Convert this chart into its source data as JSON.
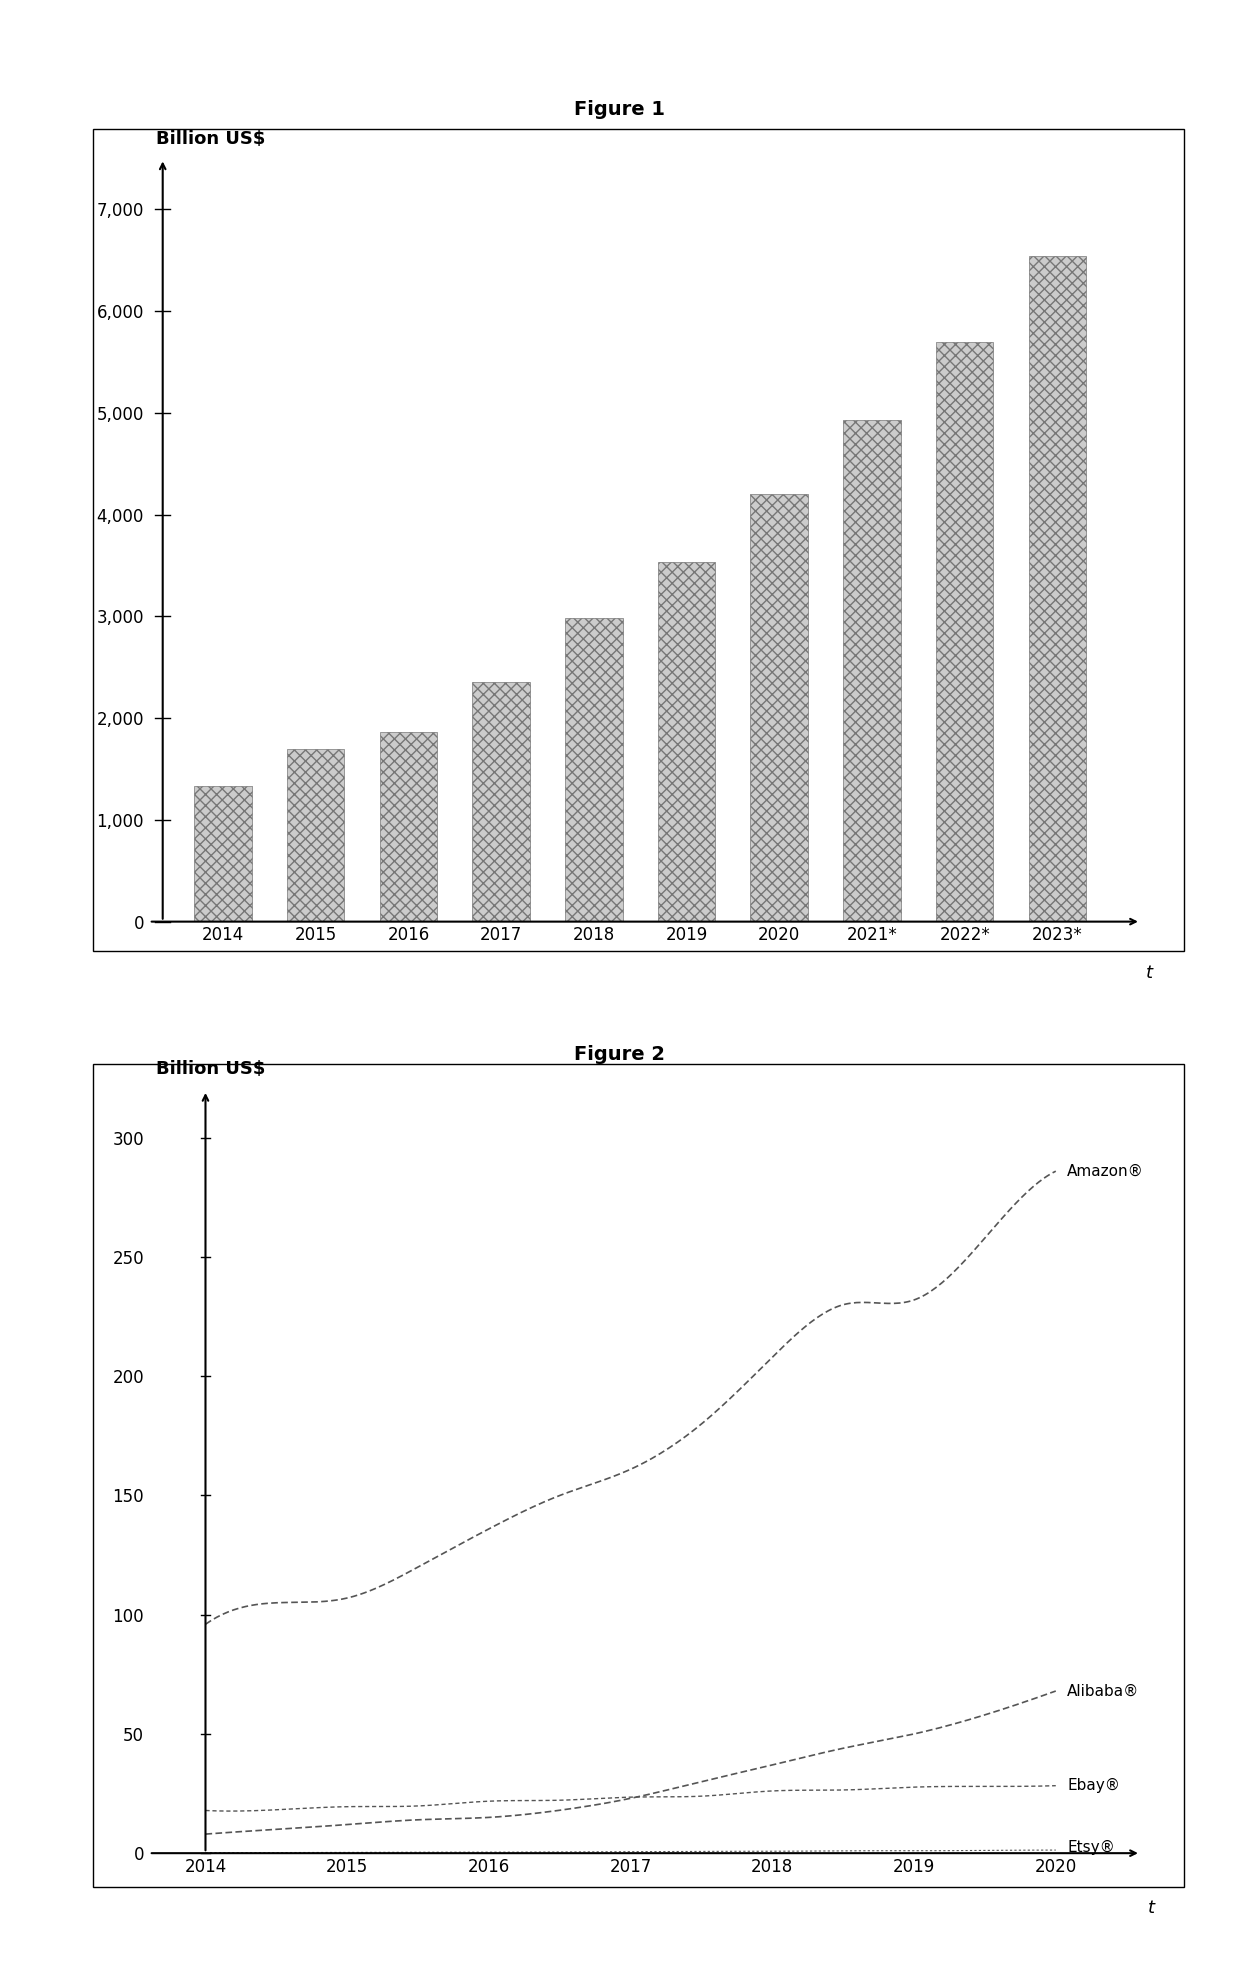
{
  "fig1_title": "Figure 1",
  "fig2_title": "Figure 2",
  "fig1_ylabel": "Billion US$",
  "fig2_ylabel": "Billion US$",
  "fig1_xlabel": "t",
  "fig2_xlabel": "t",
  "fig1_categories": [
    "2014",
    "2015",
    "2016",
    "2017",
    "2018",
    "2019",
    "2020",
    "2021*",
    "2022*",
    "2023*"
  ],
  "fig1_values": [
    1336,
    1700,
    1860,
    2357,
    2982,
    3535,
    4206,
    4927,
    5695,
    6542
  ],
  "fig1_ylim": [
    0,
    7500
  ],
  "fig1_yticks": [
    0,
    1000,
    2000,
    3000,
    4000,
    5000,
    6000,
    7000
  ],
  "amazon_years": [
    2014,
    2014.5,
    2015,
    2015.5,
    2016,
    2016.5,
    2017,
    2017.5,
    2018,
    2018.5,
    2019,
    2019.5,
    2020
  ],
  "amazon_values": [
    96,
    105,
    107,
    120,
    136,
    150,
    161,
    180,
    208,
    230,
    232,
    258,
    286
  ],
  "alibaba_years": [
    2014,
    2014.5,
    2015,
    2015.5,
    2016,
    2016.5,
    2017,
    2017.5,
    2018,
    2018.5,
    2019,
    2019.5,
    2020
  ],
  "alibaba_values": [
    8,
    10,
    12,
    14,
    15,
    18,
    23,
    30,
    37,
    44,
    50,
    58,
    68
  ],
  "ebay_years": [
    2014,
    2014.5,
    2015,
    2015.5,
    2016,
    2016.5,
    2017,
    2017.5,
    2018,
    2018.5,
    2019,
    2019.5,
    2020
  ],
  "ebay_values": [
    17.9,
    18.2,
    19.5,
    19.8,
    21.8,
    22.2,
    23.5,
    23.9,
    26.1,
    26.5,
    27.7,
    28.0,
    28.3
  ],
  "etsy_years": [
    2014,
    2014.5,
    2015,
    2015.5,
    2016,
    2016.5,
    2017,
    2017.5,
    2018,
    2018.5,
    2019,
    2019.5,
    2020
  ],
  "etsy_values": [
    0.2,
    0.25,
    0.3,
    0.4,
    0.4,
    0.52,
    0.6,
    0.76,
    0.8,
    1.0,
    1.0,
    1.15,
    1.3
  ],
  "fig2_ylim": [
    0,
    320
  ],
  "fig2_yticks": [
    0,
    50,
    100,
    150,
    200,
    250,
    300
  ],
  "fig2_xticks": [
    2014,
    2015,
    2016,
    2017,
    2018,
    2019,
    2020
  ],
  "bar_color": "#cccccc",
  "bar_hatch": "xxx",
  "line_color": "#555555",
  "bg_color": "#ffffff"
}
